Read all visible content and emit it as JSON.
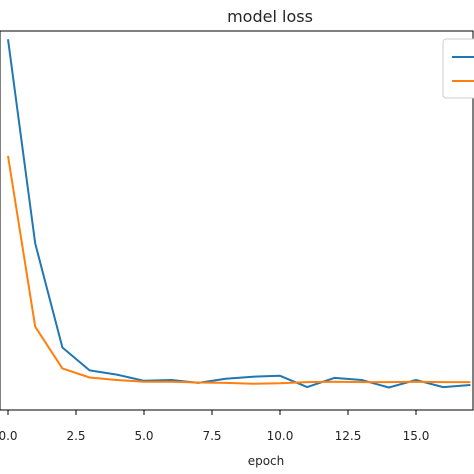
{
  "chart_data": {
    "type": "line",
    "title": "model loss",
    "xlabel": "epoch",
    "ylabel": "",
    "xlim": [
      0,
      17
    ],
    "ylim": [
      -0.01,
      0.9
    ],
    "xticks": [
      0.0,
      2.5,
      5.0,
      7.5,
      10.0,
      12.5,
      15.0
    ],
    "x": [
      0,
      1,
      2,
      3,
      4,
      5,
      6,
      7,
      8,
      9,
      10,
      11,
      12,
      13,
      14,
      15,
      16,
      17
    ],
    "series": [
      {
        "color": "#1f77b4",
        "values": [
          0.88,
          0.39,
          0.14,
          0.085,
          0.075,
          0.06,
          0.062,
          0.055,
          0.065,
          0.07,
          0.072,
          0.045,
          0.067,
          0.062,
          0.044,
          0.062,
          0.045,
          0.05
        ]
      },
      {
        "color": "#ff7f0e",
        "values": [
          0.6,
          0.19,
          0.09,
          0.068,
          0.062,
          0.058,
          0.058,
          0.056,
          0.055,
          0.053,
          0.054,
          0.057,
          0.058,
          0.057,
          0.057,
          0.058,
          0.057,
          0.057
        ]
      }
    ],
    "legend": "top-right",
    "grid": false
  }
}
